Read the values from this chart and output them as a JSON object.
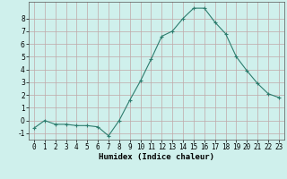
{
  "x": [
    0,
    1,
    2,
    3,
    4,
    5,
    6,
    7,
    8,
    9,
    10,
    11,
    12,
    13,
    14,
    15,
    16,
    17,
    18,
    19,
    20,
    21,
    22,
    23
  ],
  "y": [
    -0.6,
    0.0,
    -0.3,
    -0.3,
    -0.4,
    -0.4,
    -0.5,
    -1.2,
    0.0,
    1.6,
    3.1,
    4.8,
    6.6,
    7.0,
    8.0,
    8.8,
    8.8,
    7.7,
    6.8,
    5.0,
    3.9,
    2.9,
    2.1,
    1.8
  ],
  "line_color": "#2d7d6e",
  "marker": "+",
  "marker_size": 3,
  "bg_color": "#cff0ec",
  "grid_color": "#c0a8a8",
  "xlabel": "Humidex (Indice chaleur)",
  "ylim": [
    -1.5,
    9.3
  ],
  "xlim": [
    -0.5,
    23.5
  ],
  "yticks": [
    -1,
    0,
    1,
    2,
    3,
    4,
    5,
    6,
    7,
    8
  ],
  "xticks": [
    0,
    1,
    2,
    3,
    4,
    5,
    6,
    7,
    8,
    9,
    10,
    11,
    12,
    13,
    14,
    15,
    16,
    17,
    18,
    19,
    20,
    21,
    22,
    23
  ],
  "label_fontsize": 6.5,
  "tick_fontsize": 5.5
}
